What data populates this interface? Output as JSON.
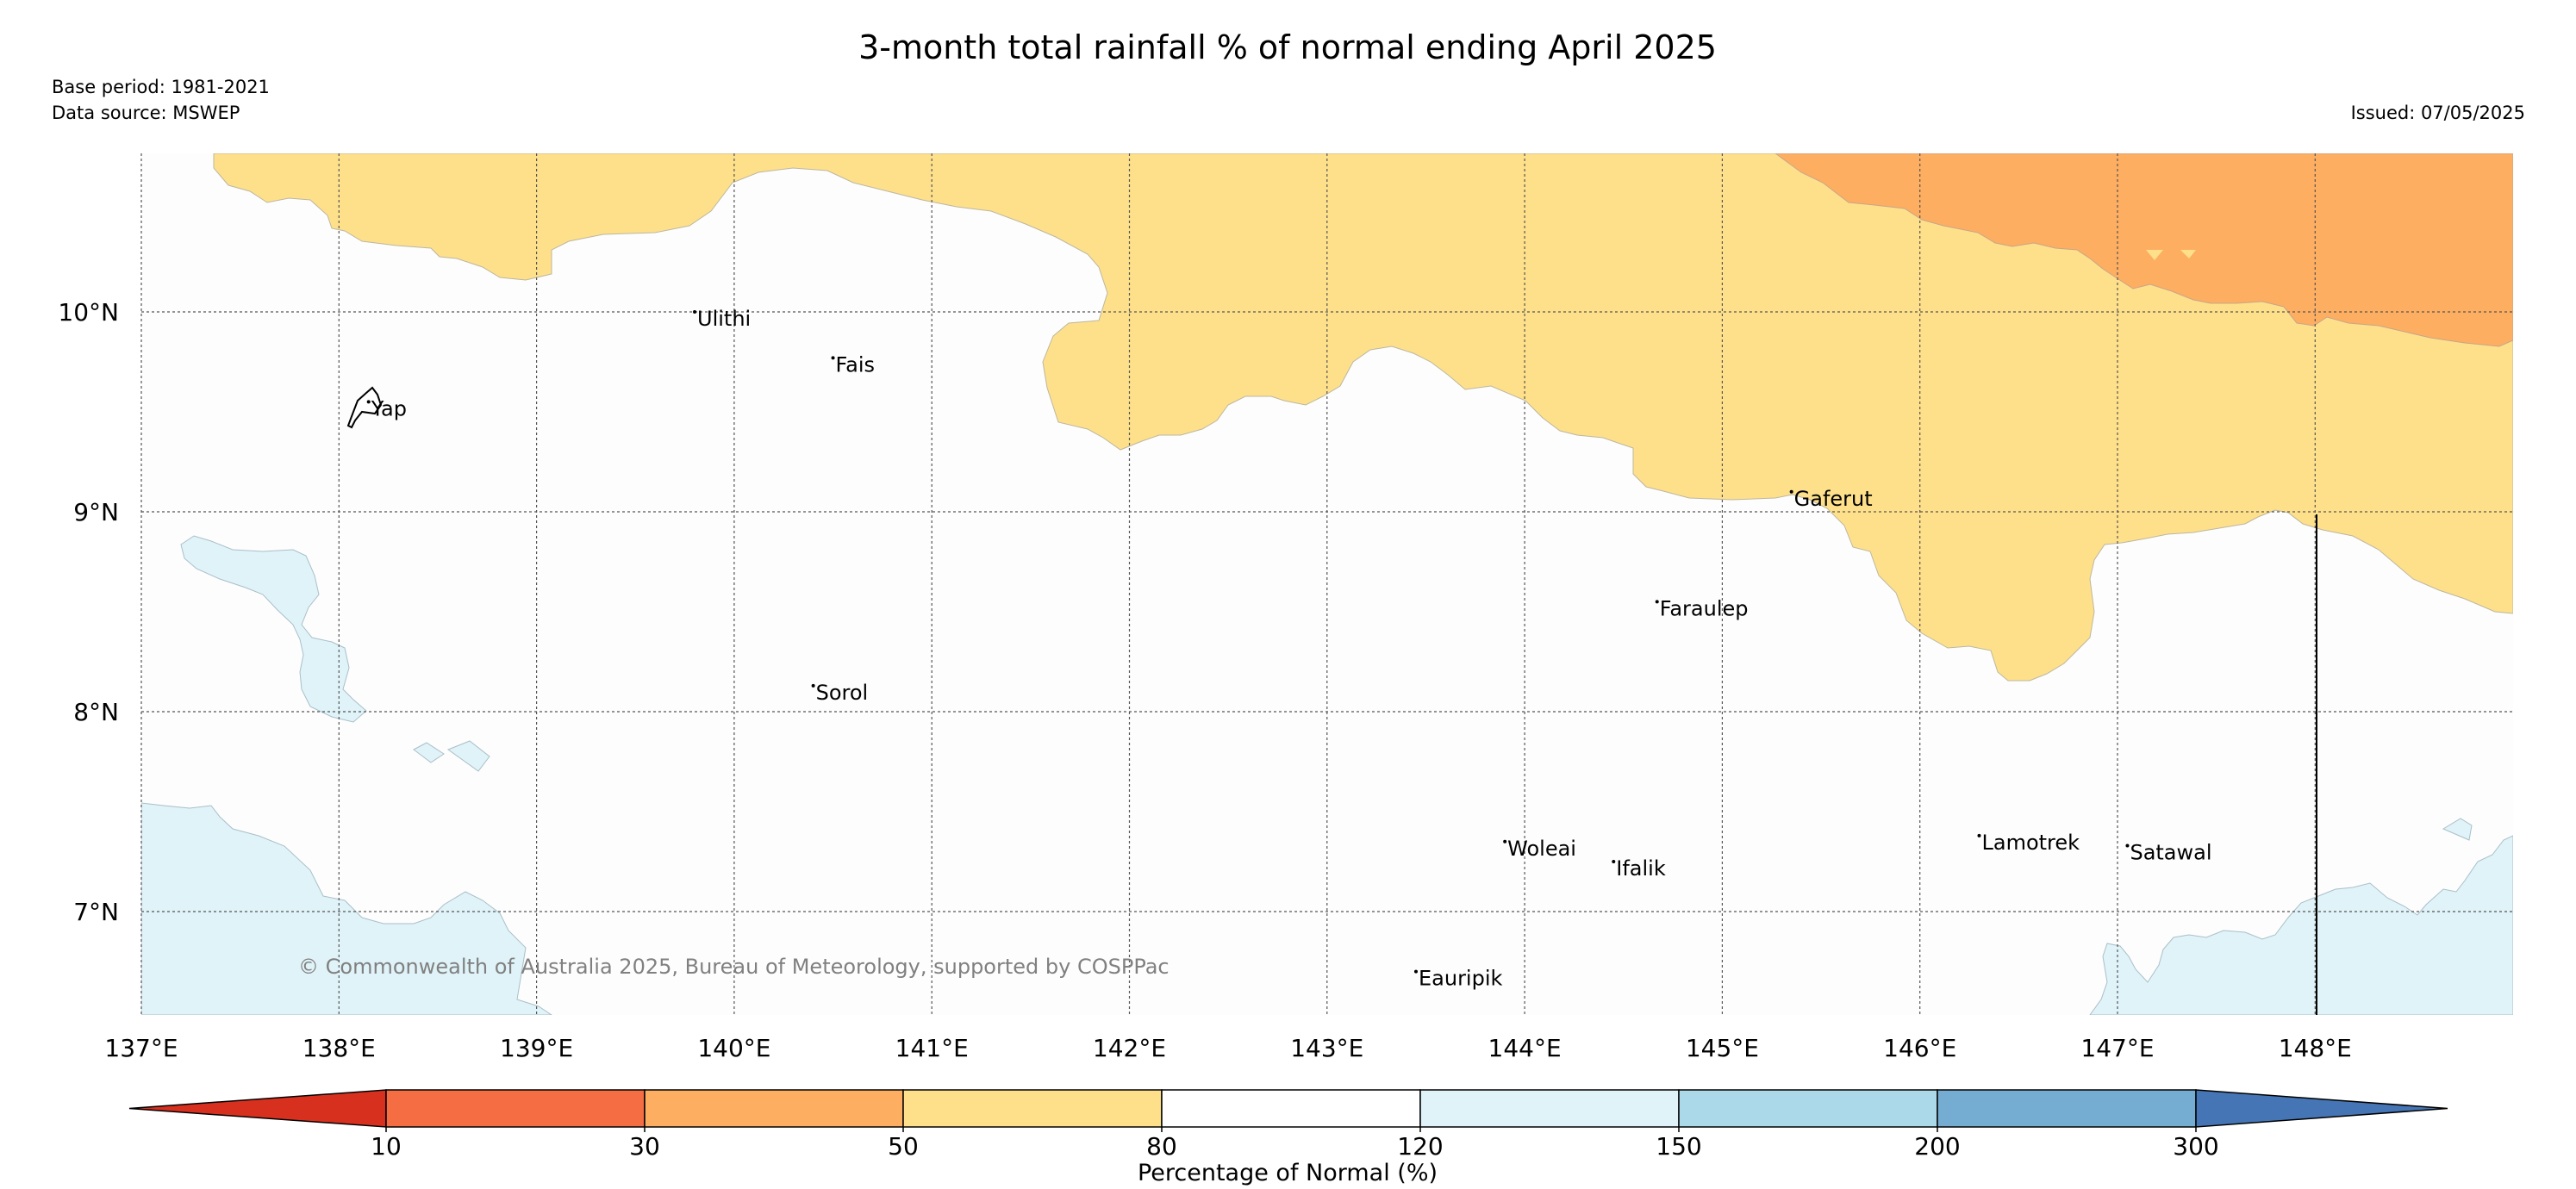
{
  "header": {
    "title": "3-month total rainfall % of normal ending April 2025",
    "base_period": "Base period: 1981-2021",
    "data_source": "Data source: MSWEP",
    "issued": "Issued: 07/05/2025"
  },
  "map": {
    "lon_labels": [
      "137°E",
      "138°E",
      "139°E",
      "140°E",
      "141°E",
      "142°E",
      "143°E",
      "144°E",
      "145°E",
      "146°E",
      "147°E",
      "148°E"
    ],
    "lat_labels": [
      "10°N",
      "9°N",
      "8°N",
      "7°N"
    ],
    "places": [
      {
        "name": "Yap",
        "lon": 138.15,
        "lat": 9.55
      },
      {
        "name": "Ulithi",
        "lon": 139.8,
        "lat": 10.0
      },
      {
        "name": "Fais",
        "lon": 140.5,
        "lat": 9.77
      },
      {
        "name": "Gaferut",
        "lon": 145.35,
        "lat": 9.1
      },
      {
        "name": "Faraulep",
        "lon": 144.67,
        "lat": 8.55
      },
      {
        "name": "Sorol",
        "lon": 140.4,
        "lat": 8.13
      },
      {
        "name": "Woleai",
        "lon": 143.9,
        "lat": 7.35
      },
      {
        "name": "Ifalik",
        "lon": 144.45,
        "lat": 7.25
      },
      {
        "name": "Lamotrek",
        "lon": 146.3,
        "lat": 7.38
      },
      {
        "name": "Satawal",
        "lon": 147.05,
        "lat": 7.33
      },
      {
        "name": "Eauripik",
        "lon": 143.45,
        "lat": 6.7
      }
    ],
    "copyright": "© Commonwealth of Australia 2025, Bureau of Meteorology, supported by COSPPac"
  },
  "legend": {
    "title": "Percentage of Normal (%)",
    "ticks": [
      "10",
      "30",
      "50",
      "80",
      "120",
      "150",
      "200",
      "300"
    ],
    "colors": [
      "#d7301f",
      "#f46d43",
      "#fdae61",
      "#fee08b",
      "#ffffff",
      "#e0f3f8",
      "#abd9e9",
      "#74add1",
      "#4575b4"
    ]
  }
}
